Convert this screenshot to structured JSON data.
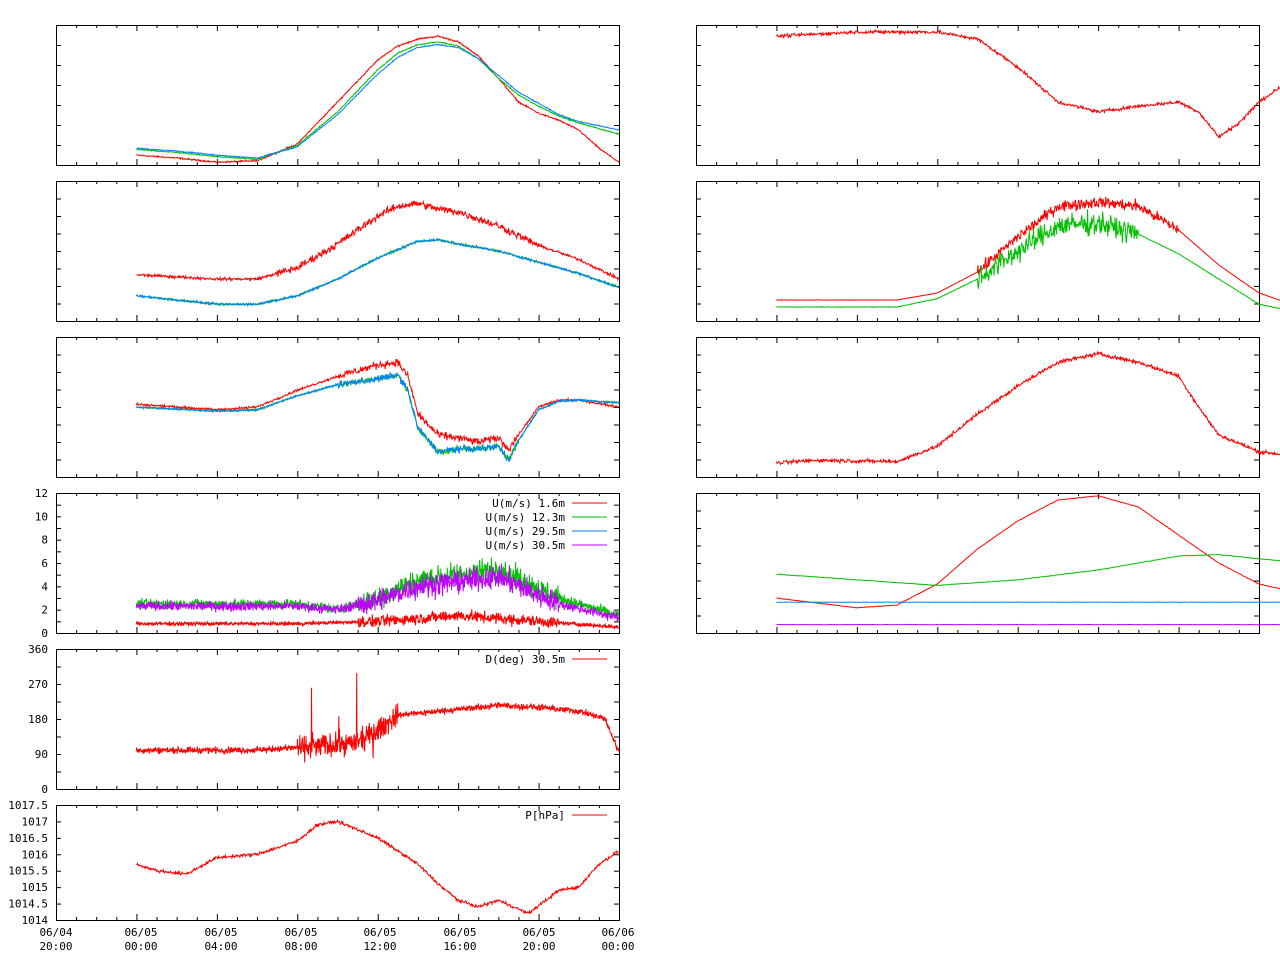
{
  "x_axis": {
    "ticks": [
      {
        "date": "06/04",
        "time": "20:00"
      },
      {
        "date": "06/05",
        "time": "00:00"
      },
      {
        "date": "06/05",
        "time": "04:00"
      },
      {
        "date": "06/05",
        "time": "08:00"
      },
      {
        "date": "06/05",
        "time": "12:00"
      },
      {
        "date": "06/05",
        "time": "16:00"
      },
      {
        "date": "06/05",
        "time": "20:00"
      },
      {
        "date": "06/06",
        "time": "00:00"
      }
    ]
  },
  "colors": {
    "red": "#ff0000",
    "green": "#00c000",
    "blue": "#0080ff",
    "purple": "#c000ff"
  },
  "chart_data": [
    {
      "id": "L1",
      "type": "line",
      "grid": false,
      "x": [
        0,
        2,
        4,
        6,
        7,
        8,
        9,
        10,
        11,
        12,
        13,
        14,
        15,
        16,
        17,
        18,
        19,
        20,
        21,
        22,
        23,
        24
      ],
      "series": [
        {
          "color": "red",
          "values": [
            null,
            null,
            null,
            null,
            null,
            null,
            null,
            null,
            null,
            null,
            null,
            null,
            null,
            null,
            null,
            null,
            null,
            null,
            null,
            null,
            null,
            null
          ]
        }
      ],
      "paths": [
        {
          "color": "red",
          "values": [
            [
              4,
              0.07
            ],
            [
              6,
              0.05
            ],
            [
              8,
              0.02
            ],
            [
              10,
              0.03
            ],
            [
              12,
              0.15
            ],
            [
              14,
              0.45
            ],
            [
              16,
              0.75
            ],
            [
              17,
              0.85
            ],
            [
              18,
              0.9
            ],
            [
              19,
              0.92
            ],
            [
              20,
              0.88
            ],
            [
              21,
              0.78
            ],
            [
              22,
              0.62
            ],
            [
              23,
              0.45
            ],
            [
              24,
              0.37
            ],
            [
              25,
              0.32
            ],
            [
              26,
              0.25
            ],
            [
              27,
              0.12
            ],
            [
              28,
              0.02
            ]
          ]
        },
        {
          "color": "green",
          "values": [
            [
              4,
              0.11
            ],
            [
              6,
              0.09
            ],
            [
              8,
              0.06
            ],
            [
              10,
              0.04
            ],
            [
              12,
              0.14
            ],
            [
              14,
              0.38
            ],
            [
              16,
              0.68
            ],
            [
              17,
              0.8
            ],
            [
              18,
              0.86
            ],
            [
              19,
              0.88
            ],
            [
              20,
              0.85
            ],
            [
              21,
              0.76
            ],
            [
              22,
              0.62
            ],
            [
              23,
              0.5
            ],
            [
              24,
              0.42
            ],
            [
              25,
              0.35
            ],
            [
              26,
              0.3
            ],
            [
              27,
              0.26
            ],
            [
              28,
              0.22
            ]
          ]
        },
        {
          "color": "blue",
          "values": [
            [
              4,
              0.12
            ],
            [
              6,
              0.1
            ],
            [
              8,
              0.07
            ],
            [
              10,
              0.05
            ],
            [
              12,
              0.13
            ],
            [
              14,
              0.36
            ],
            [
              16,
              0.65
            ],
            [
              17,
              0.77
            ],
            [
              18,
              0.84
            ],
            [
              19,
              0.86
            ],
            [
              20,
              0.84
            ],
            [
              21,
              0.76
            ],
            [
              22,
              0.64
            ],
            [
              23,
              0.52
            ],
            [
              24,
              0.44
            ],
            [
              25,
              0.36
            ],
            [
              26,
              0.31
            ],
            [
              27,
              0.28
            ],
            [
              28,
              0.25
            ]
          ]
        }
      ]
    }
  ],
  "panels": [
    {
      "id": "L4",
      "ylabels": [
        "0",
        "2",
        "4",
        "6",
        "8",
        "10",
        "12"
      ]
    },
    {
      "id": "L5",
      "ylabels": [
        "0",
        "90",
        "180",
        "270",
        "360"
      ]
    },
    {
      "id": "L6",
      "ylabels": [
        "1014",
        "1014.5",
        "1015",
        "1015.5",
        "1016",
        "1016.5",
        "1017",
        "1017.5"
      ]
    }
  ],
  "legends": {
    "L4": [
      "U(m/s)  1.6m",
      "U(m/s) 12.3m",
      "U(m/s) 29.5m",
      "U(m/s) 30.5m"
    ],
    "L5": [
      "D(deg)  30.5m"
    ],
    "L6": [
      "P[hPa]"
    ]
  }
}
